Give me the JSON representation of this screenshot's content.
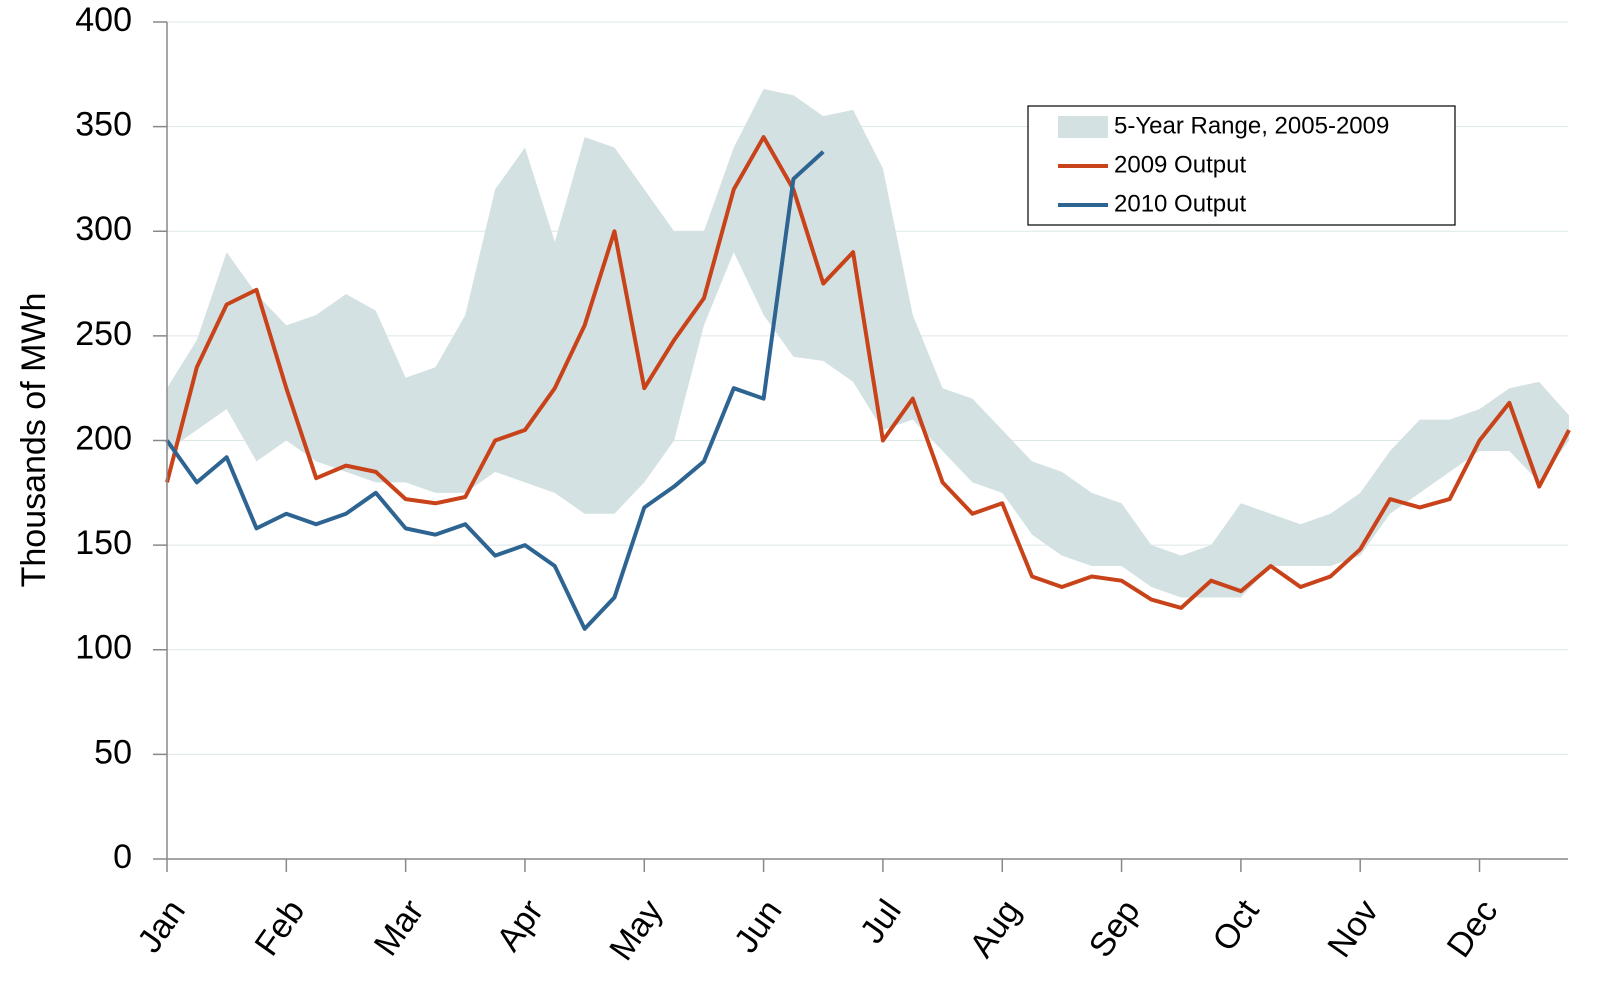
{
  "chart_data": {
    "type": "line",
    "y_label": "Thousands of MWh",
    "categories": [
      "Jan",
      null,
      null,
      null,
      "Feb",
      null,
      null,
      null,
      "Mar",
      null,
      null,
      null,
      "Apr",
      null,
      null,
      null,
      "May",
      null,
      null,
      null,
      "Jun",
      null,
      null,
      null,
      "Jul",
      null,
      null,
      null,
      "Aug",
      null,
      null,
      null,
      "Sep",
      null,
      null,
      null,
      "Oct",
      null,
      null,
      null,
      "Nov",
      null,
      null,
      null,
      "Dec",
      null,
      null,
      null
    ],
    "series": [
      {
        "name": "5-Year Range, 2005-2009",
        "type": "range",
        "color": "#d3e1e2",
        "low": [
          195,
          205,
          215,
          190,
          200,
          190,
          185,
          180,
          180,
          175,
          175,
          185,
          180,
          175,
          165,
          165,
          180,
          200,
          255,
          290,
          260,
          240,
          238,
          228,
          205,
          210,
          195,
          180,
          175,
          155,
          145,
          140,
          140,
          130,
          125,
          125,
          125,
          140,
          140,
          140,
          145,
          165,
          175,
          185,
          195,
          195,
          180,
          200
        ],
        "high": [
          225,
          248,
          290,
          270,
          255,
          260,
          270,
          262,
          230,
          235,
          260,
          320,
          340,
          295,
          345,
          340,
          320,
          300,
          300,
          340,
          368,
          365,
          355,
          358,
          330,
          260,
          225,
          220,
          205,
          190,
          185,
          175,
          170,
          150,
          145,
          150,
          170,
          165,
          160,
          165,
          175,
          195,
          210,
          210,
          215,
          225,
          228,
          212
        ]
      },
      {
        "name": "2009 Output",
        "color": "#c8431a",
        "values": [
          180,
          235,
          265,
          272,
          225,
          182,
          188,
          185,
          172,
          170,
          173,
          200,
          205,
          225,
          255,
          300,
          225,
          248,
          268,
          320,
          345,
          320,
          275,
          290,
          200,
          220,
          180,
          165,
          170,
          135,
          130,
          135,
          133,
          124,
          120,
          133,
          128,
          140,
          130,
          135,
          148,
          172,
          168,
          172,
          200,
          218,
          178,
          205
        ]
      },
      {
        "name": "2010 Output",
        "color": "#2e6491",
        "values": [
          200,
          180,
          192,
          158,
          165,
          160,
          165,
          175,
          158,
          155,
          160,
          145,
          150,
          140,
          110,
          125,
          168,
          178,
          190,
          225,
          220,
          325,
          338,
          null,
          null,
          null,
          null,
          null,
          null,
          null,
          null,
          null,
          null,
          null,
          null,
          null,
          null,
          null,
          null,
          null,
          null,
          null,
          null,
          null,
          null,
          null,
          null,
          null
        ]
      }
    ],
    "ylim": [
      0,
      400
    ],
    "yticks": [
      0,
      50,
      100,
      150,
      200,
      250,
      300,
      350,
      400
    ],
    "grid": true,
    "legend": "upper right"
  }
}
